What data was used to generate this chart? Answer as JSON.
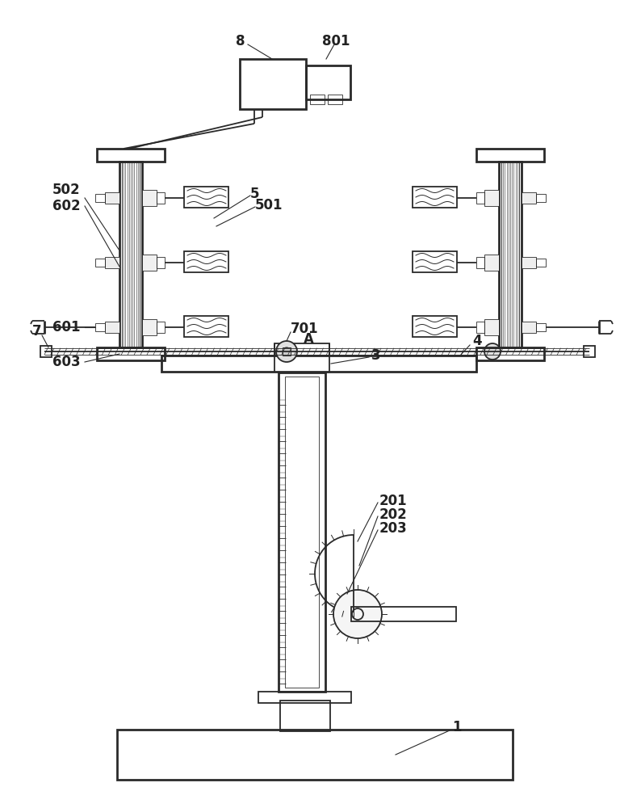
{
  "bg_color": "#ffffff",
  "line_color": "#2a2a2a",
  "label_color": "#222222",
  "fig_width": 7.94,
  "fig_height": 10.0
}
